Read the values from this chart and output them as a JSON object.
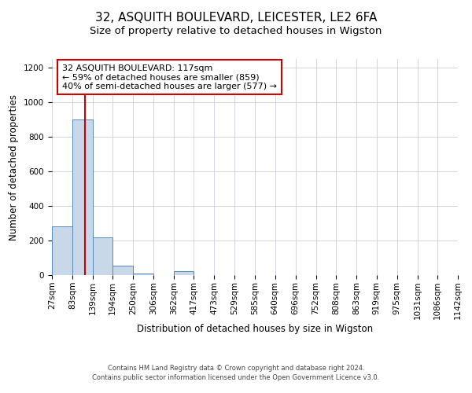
{
  "title": "32, ASQUITH BOULEVARD, LEICESTER, LE2 6FA",
  "subtitle": "Size of property relative to detached houses in Wigston",
  "xlabel": "Distribution of detached houses by size in Wigston",
  "ylabel": "Number of detached properties",
  "footer_line1": "Contains HM Land Registry data © Crown copyright and database right 2024.",
  "footer_line2": "Contains public sector information licensed under the Open Government Licence v3.0.",
  "annotation_line1": "32 ASQUITH BOULEVARD: 117sqm",
  "annotation_line2": "← 59% of detached houses are smaller (859)",
  "annotation_line3": "40% of semi-detached houses are larger (577) →",
  "bin_edges": [
    27,
    83,
    139,
    194,
    250,
    306,
    362,
    417,
    473,
    529,
    585,
    640,
    696,
    752,
    808,
    863,
    919,
    975,
    1031,
    1086,
    1142
  ],
  "bin_labels": [
    "27sqm",
    "83sqm",
    "139sqm",
    "194sqm",
    "250sqm",
    "306sqm",
    "362sqm",
    "417sqm",
    "473sqm",
    "529sqm",
    "585sqm",
    "640sqm",
    "696sqm",
    "752sqm",
    "808sqm",
    "863sqm",
    "919sqm",
    "975sqm",
    "1031sqm",
    "1086sqm",
    "1142sqm"
  ],
  "bar_heights": [
    280,
    900,
    220,
    55,
    10,
    0,
    25,
    0,
    0,
    0,
    0,
    0,
    0,
    0,
    0,
    0,
    0,
    0,
    0,
    0
  ],
  "bar_color": "#c8d8e8",
  "bar_edge_color": "#5588bb",
  "vline_color": "#cc0000",
  "vline_x": 117,
  "annotation_box_color": "#cc0000",
  "ylim": [
    0,
    1250
  ],
  "yticks": [
    0,
    200,
    400,
    600,
    800,
    1000,
    1200
  ],
  "grid_color": "#ccccdd",
  "title_fontsize": 11,
  "subtitle_fontsize": 9.5,
  "annotation_fontsize": 8.0,
  "axis_label_fontsize": 8.5,
  "tick_fontsize": 7.5,
  "footer_fontsize": 6.0
}
